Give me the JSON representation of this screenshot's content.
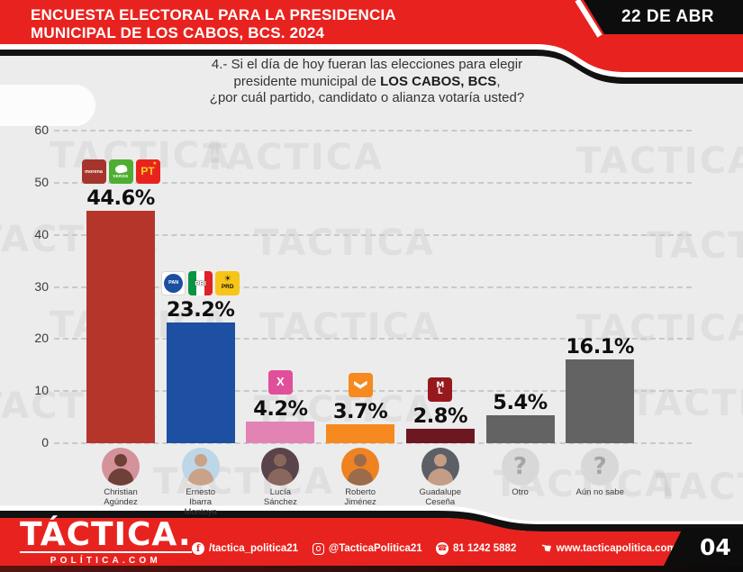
{
  "page_bg": "#ececec",
  "accent_red": "#e8231f",
  "header": {
    "title_line1": "ENCUESTA ELECTORAL PARA LA PRESIDENCIA",
    "title_line2": "MUNICIPAL DE LOS CABOS, BCS.  2024",
    "date_badge": "22 DE ABR"
  },
  "question": {
    "line1": "4.- Si el día de hoy fueran las elecciones para elegir",
    "line2_prefix": "presidente municipal de ",
    "line2_bold": "LOS CABOS, BCS",
    "line2_suffix": ",",
    "line3": "¿por cuál partido, candidato o alianza votaría usted?"
  },
  "question_mark": "?",
  "watermark": {
    "text": "TACTICA"
  },
  "chart_data": {
    "type": "bar",
    "ylim": [
      0,
      60
    ],
    "yticks": [
      0,
      10,
      20,
      30,
      40,
      50,
      60
    ],
    "grid": "horizontal-dashed",
    "legend_position": "none",
    "categories": [
      "Christian Agúndez",
      "Ernesto Ibarra Montoya",
      "Lucía Sánchez",
      "Roberto Jiménez",
      "Guadalupe Ceseña",
      "Otro",
      "Aún no sabe"
    ],
    "values": [
      44.6,
      23.2,
      4.2,
      3.7,
      2.8,
      5.4,
      16.1
    ],
    "columns": [
      {
        "label": "44.6%",
        "value": 44.6,
        "color": "#b6352b",
        "logos": [
          "morena",
          "verde",
          "pt"
        ],
        "name_lines": [
          "Christian",
          "Agúndez"
        ],
        "photo": "person",
        "photo_bg": "#d4929b",
        "photo_fg": "#6e4038"
      },
      {
        "label": "23.2%",
        "value": 23.2,
        "color": "#1d4fa3",
        "logos": [
          "pan",
          "pri",
          "prd"
        ],
        "name_lines": [
          "Ernesto",
          "Ibarra",
          "Montoya"
        ],
        "photo": "person",
        "photo_bg": "#bdd7e8",
        "photo_fg": "#caa287"
      },
      {
        "label": "4.2%",
        "value": 4.2,
        "color": "#e283b4",
        "logos": [
          "fxm"
        ],
        "name_lines": [
          "Lucía",
          "Sánchez"
        ],
        "photo": "person",
        "photo_bg": "#584449",
        "photo_fg": "#8a675c"
      },
      {
        "label": "3.7%",
        "value": 3.7,
        "color": "#f6891f",
        "logos": [
          "mc"
        ],
        "name_lines": [
          "Roberto",
          "Jiménez"
        ],
        "photo": "person",
        "photo_bg": "#ef8322",
        "photo_fg": "#9c6b4a"
      },
      {
        "label": "2.8%",
        "value": 2.8,
        "color": "#6d1722",
        "logos": [
          "ml"
        ],
        "name_lines": [
          "Guadalupe",
          "Ceseña"
        ],
        "photo": "person",
        "photo_bg": "#5c5f66",
        "photo_fg": "#c59d85"
      },
      {
        "label": "5.4%",
        "value": 5.4,
        "color": "#636363",
        "logos": [],
        "name_lines": [
          "Otro"
        ],
        "photo": "question",
        "photo_bg": "#d8d8d8",
        "photo_fg": "#a5a5a5"
      },
      {
        "label": "16.1%",
        "value": 16.1,
        "color": "#636363",
        "logos": [],
        "name_lines": [
          "Aún no sabe"
        ],
        "photo": "question",
        "photo_bg": "#d8d8d8",
        "photo_fg": "#a5a5a5"
      }
    ],
    "party_logo_defs": {
      "morena": {
        "bg": "#a5352c",
        "text": "morena",
        "fg": "#ffffff"
      },
      "verde": {
        "bg": "#4fae31",
        "text": "VERDE",
        "fg": "#ffffff"
      },
      "pt": {
        "bg": "#e8231f",
        "text": "PT",
        "fg": "#f8d21a",
        "star": "★"
      },
      "pan": {
        "bg": "#ffffff",
        "text": "PAN",
        "fg": "#ffffff",
        "circle": "#1b4fa0"
      },
      "pri": {
        "text": "PRI",
        "fg": "#ffffff",
        "stripes": [
          "#0b9444",
          "#ffffff",
          "#e02128"
        ]
      },
      "prd": {
        "bg": "#f7c517",
        "text": "PRD",
        "fg": "#1a1a1a",
        "sun": "☀"
      },
      "fxm": {
        "bg": "#e0509a",
        "text": "X",
        "fg": "#ffffff"
      },
      "mc": {
        "bg": "#f6891f",
        "fg": "#ffffff",
        "shape": "eagle"
      },
      "ml": {
        "bg": "#97191d",
        "lines": [
          "M",
          "L"
        ],
        "fg": "#ffffff"
      }
    }
  },
  "footer": {
    "logo_main": "TÁCTICA.",
    "logo_sub": "POLÍTICA.COM",
    "icons": {
      "facebook": "f",
      "whatsapp": "☎",
      "website": "☚"
    },
    "facebook": "/tactica_politica21",
    "instagram": "@TacticaPolitica21",
    "phone": "81 1242 5882",
    "website": "www.tacticapolitica.com",
    "page_number": "04"
  }
}
